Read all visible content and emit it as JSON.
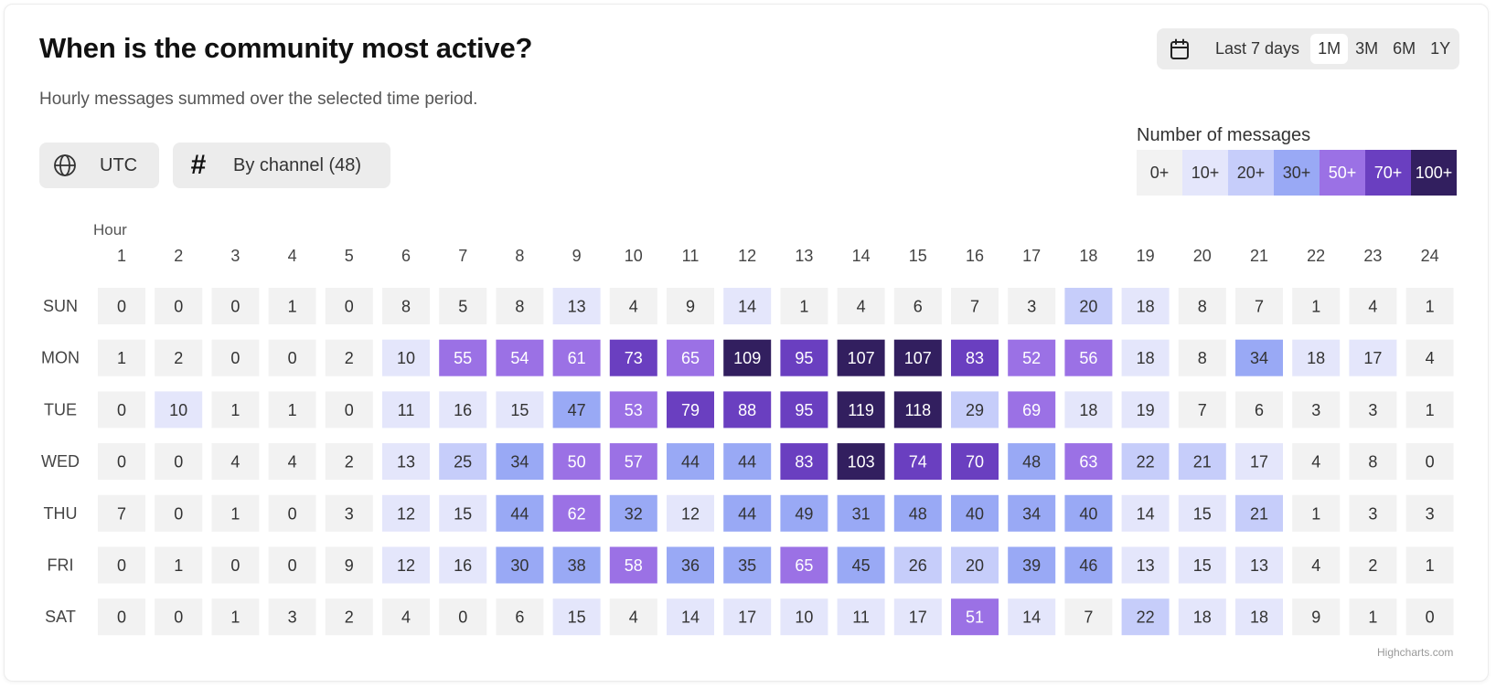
{
  "header": {
    "title": "When is the community most active?",
    "subtitle": "Hourly messages summed over the selected time period."
  },
  "range_selector": {
    "icon": "calendar-icon",
    "label": "Last 7 days",
    "options": [
      "1M",
      "3M",
      "6M",
      "1Y"
    ],
    "selected": "1M"
  },
  "filters": {
    "timezone": {
      "icon": "globe-icon",
      "label": "UTC"
    },
    "channel": {
      "icon": "hash-icon",
      "glyph": "#",
      "label": "By channel (48)"
    }
  },
  "legend": {
    "title": "Number of messages",
    "bins": [
      {
        "label": "0+",
        "min": 0,
        "color": "#f2f2f2",
        "text_color": "#333333"
      },
      {
        "label": "10+",
        "min": 10,
        "color": "#e4e6fb",
        "text_color": "#333333"
      },
      {
        "label": "20+",
        "min": 20,
        "color": "#c6cdfa",
        "text_color": "#333333"
      },
      {
        "label": "30+",
        "min": 30,
        "color": "#99a9f5",
        "text_color": "#333333"
      },
      {
        "label": "50+",
        "min": 50,
        "color": "#9b71e5",
        "text_color": "#ffffff"
      },
      {
        "label": "70+",
        "min": 70,
        "color": "#6a3fc0",
        "text_color": "#ffffff"
      },
      {
        "label": "100+",
        "min": 100,
        "color": "#321f5f",
        "text_color": "#ffffff"
      }
    ]
  },
  "chart_data": {
    "type": "heatmap",
    "title": "When is the community most active?",
    "subtitle": "Hourly messages summed over the selected time period.",
    "xlabel": "Hour",
    "ylabel": "",
    "x": [
      "1",
      "2",
      "3",
      "4",
      "5",
      "6",
      "7",
      "8",
      "9",
      "10",
      "11",
      "12",
      "13",
      "14",
      "15",
      "16",
      "17",
      "18",
      "19",
      "20",
      "21",
      "22",
      "23",
      "24"
    ],
    "y": [
      "SUN",
      "MON",
      "TUE",
      "WED",
      "THU",
      "FRI",
      "SAT"
    ],
    "values": [
      [
        0,
        0,
        0,
        1,
        0,
        8,
        5,
        8,
        13,
        4,
        9,
        14,
        1,
        4,
        6,
        7,
        3,
        20,
        18,
        8,
        7,
        1,
        4,
        1
      ],
      [
        1,
        2,
        0,
        0,
        2,
        10,
        55,
        54,
        61,
        73,
        65,
        109,
        95,
        107,
        107,
        83,
        52,
        56,
        18,
        8,
        34,
        18,
        17,
        4
      ],
      [
        0,
        10,
        1,
        1,
        0,
        11,
        16,
        15,
        47,
        53,
        79,
        88,
        95,
        119,
        118,
        29,
        69,
        18,
        19,
        7,
        6,
        3,
        3,
        1
      ],
      [
        0,
        0,
        4,
        4,
        2,
        13,
        25,
        34,
        50,
        57,
        44,
        44,
        83,
        103,
        74,
        70,
        48,
        63,
        22,
        21,
        17,
        4,
        8,
        0
      ],
      [
        7,
        0,
        1,
        0,
        3,
        12,
        15,
        44,
        62,
        32,
        12,
        44,
        49,
        31,
        48,
        40,
        34,
        40,
        14,
        15,
        21,
        1,
        3,
        3
      ],
      [
        0,
        1,
        0,
        0,
        9,
        12,
        16,
        30,
        38,
        58,
        36,
        35,
        65,
        45,
        26,
        20,
        39,
        46,
        13,
        15,
        13,
        4,
        2,
        1
      ],
      [
        0,
        0,
        1,
        3,
        2,
        4,
        0,
        6,
        15,
        4,
        14,
        17,
        10,
        11,
        17,
        51,
        14,
        7,
        22,
        18,
        18,
        9,
        1,
        0
      ]
    ],
    "legend_position": "top-right"
  },
  "credit": "Highcharts.com"
}
